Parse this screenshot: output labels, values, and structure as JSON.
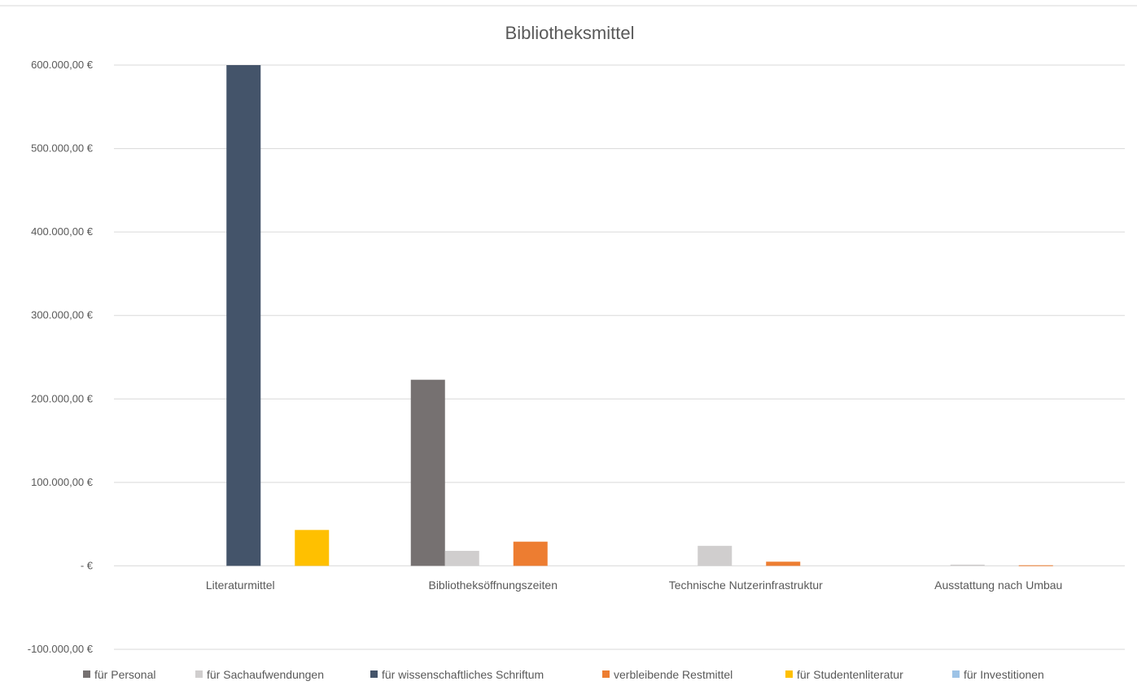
{
  "chart_data": {
    "type": "bar",
    "title": "Bibliotheksmittel",
    "xlabel": "",
    "ylabel": "",
    "ylim": [
      -100000,
      600000
    ],
    "yticks": [
      600000,
      500000,
      400000,
      300000,
      200000,
      100000,
      0,
      -100000
    ],
    "ytick_labels": [
      "600.000,00 €",
      "500.000,00 €",
      "400.000,00 €",
      "300.000,00 €",
      "200.000,00 €",
      "100.000,00 €",
      " -  €",
      "-100.000,00 €"
    ],
    "grid": true,
    "legend_position": "bottom",
    "categories": [
      "Literaturmittel",
      "Bibliotheksöffnungszeiten",
      "Technische Nutzerinfrastruktur",
      "Ausstattung nach Umbau"
    ],
    "series": [
      {
        "name": "für Personal",
        "color": "#767171",
        "values": [
          0,
          223000,
          0,
          0
        ]
      },
      {
        "name": "für Sachaufwendungen",
        "color": "#d0cece",
        "values": [
          0,
          18000,
          24000,
          1500
        ]
      },
      {
        "name": "für wissenschaftliches Schriftum",
        "color": "#44546a",
        "values": [
          600000,
          0,
          0,
          0
        ]
      },
      {
        "name": "verbleibende Restmittel",
        "color": "#ed7d31",
        "values": [
          0,
          29000,
          5000,
          700
        ]
      },
      {
        "name": "für Studentenliteratur",
        "color": "#ffc000",
        "values": [
          43000,
          0,
          0,
          0
        ]
      },
      {
        "name": "für Investitionen",
        "color": "#9dc3e6",
        "values": [
          0,
          0,
          0,
          0
        ]
      }
    ]
  }
}
